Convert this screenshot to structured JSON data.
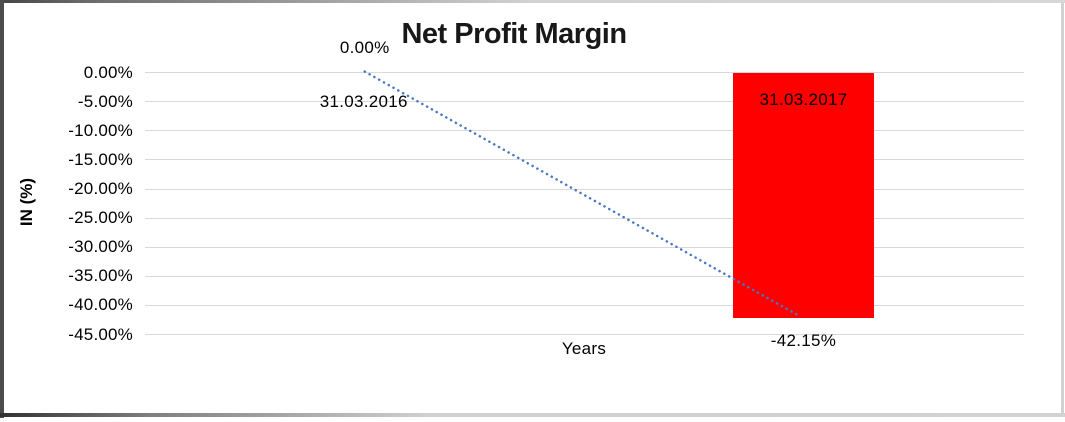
{
  "frame": {
    "background": "#ffffff",
    "border_dark": "#4c4c4e",
    "border_light": "#d2d2d4"
  },
  "chart_data": {
    "type": "bar",
    "title": "Net Profit Margin",
    "xlabel": "Years",
    "ylabel": "IN (%)",
    "categories": [
      "31.03.2016",
      "31.03.2017"
    ],
    "values": [
      0,
      -42.15
    ],
    "value_labels": [
      "0.00%",
      "-42.15%"
    ],
    "ylim": [
      0,
      -45
    ],
    "yticks_percent": [
      0,
      -5,
      -10,
      -15,
      -20,
      -25,
      -30,
      -35,
      -40,
      -45
    ],
    "ytick_labels": [
      "0.00%",
      "-5.00%",
      "-10.00%",
      "-15.00%",
      "-20.00%",
      "-25.00%",
      "-30.00%",
      "-35.00%",
      "-40.00%",
      "-45.00%"
    ],
    "grid": true,
    "legend_position": "none",
    "bar_color": "#ff0000",
    "grid_color": "#d9d9d9",
    "text_color": "#000000",
    "trendline": {
      "type": "linear",
      "style": "dotted",
      "color": "#4777c0",
      "from": 0,
      "to": -42.15
    }
  }
}
